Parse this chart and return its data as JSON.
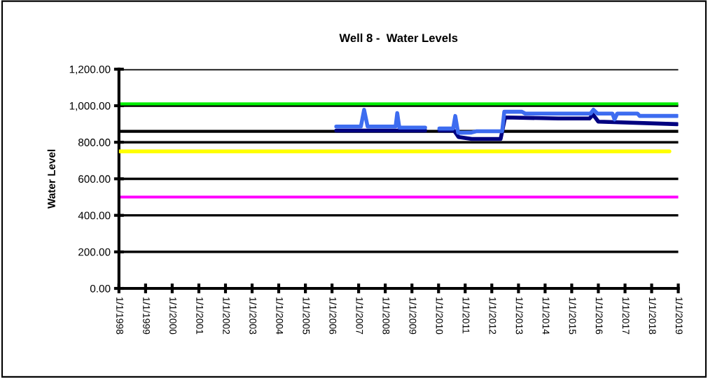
{
  "chart_data": {
    "type": "line",
    "title": "Well 8 -  Water Levels",
    "ylabel": "Water Level",
    "xlim": [
      "1998-01-01",
      "2019-01-01"
    ],
    "xticks": [
      {
        "value": "1998-01-01",
        "label": "1/1/1998"
      },
      {
        "value": "1999-01-01",
        "label": "1/1/1999"
      },
      {
        "value": "2000-01-01",
        "label": "1/1/2000"
      },
      {
        "value": "2001-01-01",
        "label": "1/1/2001"
      },
      {
        "value": "2002-01-01",
        "label": "1/1/2002"
      },
      {
        "value": "2003-01-01",
        "label": "1/1/2003"
      },
      {
        "value": "2004-01-01",
        "label": "1/1/2004"
      },
      {
        "value": "2005-01-01",
        "label": "1/1/2005"
      },
      {
        "value": "2006-01-01",
        "label": "1/1/2006"
      },
      {
        "value": "2007-01-01",
        "label": "1/1/2007"
      },
      {
        "value": "2008-01-01",
        "label": "1/1/2008"
      },
      {
        "value": "2009-01-01",
        "label": "1/1/2009"
      },
      {
        "value": "2010-01-01",
        "label": "1/1/2010"
      },
      {
        "value": "2011-01-01",
        "label": "1/1/2011"
      },
      {
        "value": "2012-01-01",
        "label": "1/1/2012"
      },
      {
        "value": "2013-01-01",
        "label": "1/1/2013"
      },
      {
        "value": "2014-01-01",
        "label": "1/1/2014"
      },
      {
        "value": "2015-01-01",
        "label": "1/1/2015"
      },
      {
        "value": "2016-01-01",
        "label": "1/1/2016"
      },
      {
        "value": "2017-01-01",
        "label": "1/1/2017"
      },
      {
        "value": "2018-01-01",
        "label": "1/1/2018"
      },
      {
        "value": "2019-01-01",
        "label": "1/1/2019"
      }
    ],
    "ylim": [
      0,
      1200
    ],
    "yticks": [
      {
        "value": 0,
        "label": "0.00"
      },
      {
        "value": 200,
        "label": "200.00"
      },
      {
        "value": 400,
        "label": "400.00"
      },
      {
        "value": 600,
        "label": "600.00"
      },
      {
        "value": 800,
        "label": "800.00"
      },
      {
        "value": 1000,
        "label": "1,000.00"
      },
      {
        "value": 1200,
        "label": "1,200.00"
      }
    ],
    "grid": "y",
    "legend": false,
    "marker": "none",
    "line_style": "solid",
    "ref_lines": [
      {
        "axis": "y",
        "value": 1010,
        "color": "#00ee00"
      },
      {
        "axis": "y",
        "value": 860,
        "color": "#000000"
      },
      {
        "axis": "y",
        "value": 500,
        "color": "#ff00ff"
      }
    ],
    "series": [
      {
        "color": "#ffff00",
        "x": [
          "1998-01-01",
          "2018-09-01"
        ],
        "values": [
          750,
          750
        ]
      },
      {
        "color": "#000080",
        "x": [
          "2006-02-28",
          "2009-07-01",
          "2009-10-01",
          "2010-01-12",
          "2010-08-01",
          "2010-10-01",
          "2011-04-01",
          "2012-05-01",
          "2012-07-01",
          "2014-07-01",
          "2015-09-01",
          "2015-10-20",
          "2016-01-01",
          "2018-12-20"
        ],
        "values": [
          864,
          864,
          null,
          864,
          864,
          829,
          818,
          818,
          936,
          930,
          930,
          952,
          913,
          899
        ]
      },
      {
        "color": "#3d6cf0",
        "x": [
          "2006-02-28",
          "2007-02-01",
          "2007-03-17",
          "2007-05-04",
          "2008-05-22",
          "2008-06-13",
          "2008-07-12",
          "2009-07-01",
          "2009-10-01",
          "2010-01-12",
          "2010-07-20",
          "2010-08-18",
          "2010-09-26",
          "2011-03-28",
          "2011-06-01",
          "2012-05-22",
          "2012-06-20",
          "2013-02-17",
          "2013-04-04",
          "2015-09-16",
          "2015-10-26",
          "2015-12-20",
          "2016-07-12",
          "2016-08-10",
          "2016-09-16",
          "2017-06-20",
          "2017-07-20",
          "2018-12-20"
        ],
        "values": [
          886,
          886,
          978,
          886,
          886,
          960,
          880,
          880,
          null,
          875,
          875,
          944,
          852,
          853,
          860,
          860,
          967,
          967,
          957,
          957,
          978,
          957,
          957,
          925,
          957,
          957,
          944,
          944
        ]
      }
    ]
  }
}
